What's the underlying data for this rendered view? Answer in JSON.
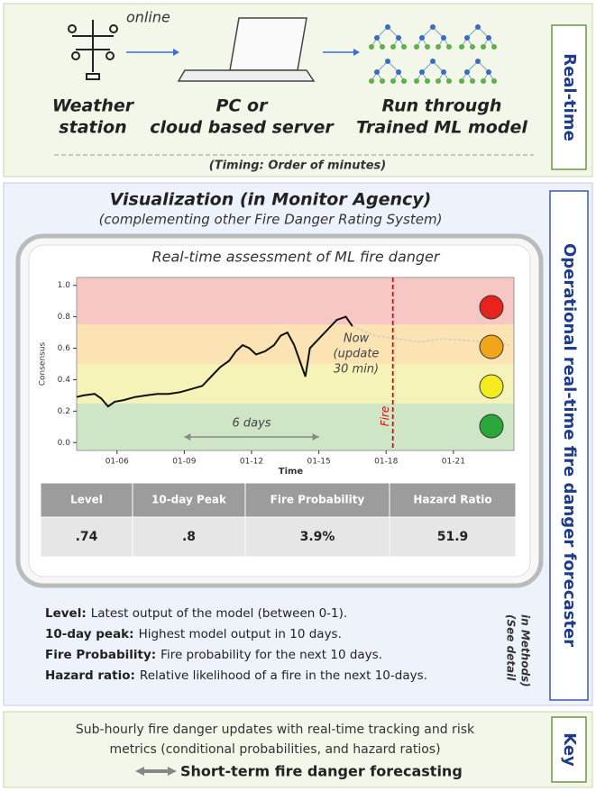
{
  "realtime": {
    "label": "Real-time",
    "online": "online",
    "nodes": [
      {
        "lines": [
          "Weather",
          "station"
        ]
      },
      {
        "lines": [
          "PC or",
          "cloud based server"
        ]
      },
      {
        "lines": [
          "Run through",
          "Trained ML model"
        ]
      }
    ],
    "timing": "(Timing: Order of minutes)"
  },
  "operational": {
    "label": "Operational real-time fire danger forecaster",
    "title": "Visualization (in Monitor Agency)",
    "subtitle": "(complementing other Fire Danger Rating System)",
    "chart_data": {
      "type": "line",
      "title": "Real-time assessment of ML fire danger",
      "xlabel": "Time",
      "ylabel": "Consensus",
      "xlim": [
        4.2,
        23.7
      ],
      "ylim": [
        -0.05,
        1.05
      ],
      "xticks": [
        {
          "value": 6,
          "label": "01-06"
        },
        {
          "value": 9,
          "label": "01-09"
        },
        {
          "value": 12,
          "label": "01-12"
        },
        {
          "value": 15,
          "label": "01-15"
        },
        {
          "value": 18,
          "label": "01-18"
        },
        {
          "value": 21,
          "label": "01-21"
        }
      ],
      "yticks": [
        {
          "value": 0,
          "label": "0.0"
        },
        0.2,
        0.4,
        0.6,
        0.8,
        {
          "value": 1,
          "label": "1.0"
        }
      ],
      "bands": [
        {
          "from": -0.05,
          "to": 0.25,
          "color": "#cfe6c6"
        },
        {
          "from": 0.25,
          "to": 0.5,
          "color": "#f6f3b8"
        },
        {
          "from": 0.5,
          "to": 0.75,
          "color": "#fbe3b4"
        },
        {
          "from": 0.75,
          "to": 1.05,
          "color": "#f7c7c3"
        }
      ],
      "series": [
        {
          "color": "#111111",
          "dashed": false,
          "x": [
            4.2,
            4.5,
            5.0,
            5.3,
            5.6,
            5.9,
            6.3,
            6.8,
            7.3,
            7.8,
            8.3,
            8.8,
            9.3,
            9.8,
            10.2,
            10.6,
            11.0,
            11.3,
            11.6,
            11.9,
            12.2,
            12.6,
            13.0,
            13.3,
            13.6,
            13.9,
            14.2,
            14.4,
            14.6,
            15.0,
            15.4,
            15.8,
            16.2,
            16.5
          ],
          "values": [
            0.29,
            0.3,
            0.31,
            0.28,
            0.23,
            0.26,
            0.27,
            0.29,
            0.3,
            0.31,
            0.31,
            0.32,
            0.34,
            0.36,
            0.42,
            0.48,
            0.52,
            0.58,
            0.62,
            0.6,
            0.56,
            0.58,
            0.62,
            0.68,
            0.7,
            0.62,
            0.5,
            0.42,
            0.6,
            0.66,
            0.72,
            0.78,
            0.8,
            0.74
          ]
        },
        {
          "color": "#cccccc",
          "dashed": true,
          "x": [
            16.5,
            17.5,
            18.5,
            19.5,
            20.5,
            21.5,
            22.5,
            23.5
          ],
          "values": [
            0.74,
            0.68,
            0.66,
            0.64,
            0.66,
            0.65,
            0.64,
            0.62
          ]
        }
      ],
      "now_note": [
        "Now",
        "(update",
        "30 min)"
      ],
      "span_note": {
        "text": "6 days",
        "from": 9,
        "to": 15
      },
      "fire": {
        "label": "Fire",
        "x": 18.3
      }
    },
    "table": {
      "headers": [
        "Level",
        "10-day Peak",
        "Fire Probability",
        "Hazard Ratio"
      ],
      "rows": [
        [
          ".74",
          ".8",
          "3.9%",
          "51.9"
        ]
      ]
    },
    "definitions": [
      {
        "term": "Level:",
        "text": "Latest output of the model (between 0-1)."
      },
      {
        "term": "10-day peak:",
        "text": "Highest model output in 10 days."
      },
      {
        "term": "Fire Probability:",
        "text": "Fire probability for the next 10 days."
      },
      {
        "term": "Hazard ratio:",
        "text": "Relative likelihood of a fire in the next 10-days."
      }
    ],
    "side_note": [
      "(See detail",
      "in Methods)"
    ]
  },
  "key": {
    "label": "Key",
    "lines": [
      "Sub-hourly fire danger updates with real-time tracking and risk",
      "metrics  (conditional probabilities, and hazard ratios)"
    ],
    "headline": "Short-term fire danger forecasting"
  }
}
